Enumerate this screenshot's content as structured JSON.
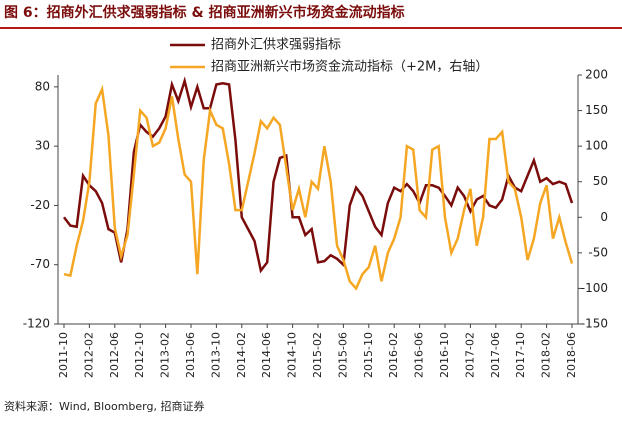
{
  "chart_data": {
    "type": "line",
    "title": "图 6：招商外汇供求强弱指标 & 招商亚洲新兴市场资金流动指标",
    "source": "资料来源：Wind, Bloomberg, 招商证券",
    "categories": [
      "2011-10",
      null,
      null,
      null,
      "2012-02",
      null,
      null,
      null,
      "2012-06",
      null,
      null,
      null,
      "2012-10",
      null,
      null,
      null,
      "2013-02",
      null,
      null,
      null,
      "2013-06",
      null,
      null,
      null,
      "2013-10",
      null,
      null,
      null,
      "2014-02",
      null,
      null,
      null,
      "2014-06",
      null,
      null,
      null,
      "2014-10",
      null,
      null,
      null,
      "2015-02",
      null,
      null,
      null,
      "2015-06",
      null,
      null,
      null,
      "2015-10",
      null,
      null,
      null,
      "2016-02",
      null,
      null,
      null,
      "2016-06",
      null,
      null,
      null,
      "2016-10",
      null,
      null,
      null,
      "2017-02",
      null,
      null,
      null,
      "2017-06",
      null,
      null,
      null,
      "2017-10",
      null,
      null,
      null,
      "2018-02",
      null,
      null,
      null,
      "2018-06"
    ],
    "series": [
      {
        "name": "招商外汇供求强弱指标",
        "color": "#7b0c0c",
        "axis": "y",
        "values": [
          -30,
          -37,
          -38,
          5,
          -3,
          -8,
          -18,
          -40,
          -43,
          -68,
          -40,
          25,
          48,
          42,
          38,
          45,
          55,
          82,
          68,
          85,
          63,
          80,
          62,
          62,
          82,
          83,
          82,
          35,
          -30,
          -40,
          -50,
          -75,
          -68,
          0,
          20,
          22,
          -30,
          -30,
          -45,
          -40,
          -68,
          -67,
          -62,
          -65,
          -70,
          -20,
          -5,
          -12,
          -25,
          -38,
          -45,
          -18,
          -5,
          -8,
          -2,
          -8,
          -18,
          -3,
          -3,
          -5,
          -12,
          -20,
          -5,
          -12,
          -25,
          -15,
          -12,
          -20,
          -22,
          -15,
          5,
          -5,
          -8,
          5,
          18,
          0,
          3,
          -2,
          0,
          -2,
          -18
        ]
      },
      {
        "name": "招商亚洲新兴市场资金流动指标（+2M，右轴）",
        "color": "#f5a623",
        "axis": "y2",
        "values": [
          -80,
          -82,
          -40,
          -5,
          50,
          160,
          180,
          115,
          -15,
          -55,
          -25,
          60,
          150,
          140,
          100,
          105,
          125,
          170,
          110,
          60,
          50,
          -80,
          80,
          150,
          130,
          125,
          75,
          10,
          10,
          50,
          90,
          135,
          125,
          140,
          130,
          70,
          10,
          40,
          0,
          50,
          40,
          100,
          50,
          -40,
          -60,
          -90,
          -100,
          -80,
          -70,
          -40,
          -90,
          -50,
          -30,
          0,
          100,
          95,
          10,
          0,
          95,
          100,
          0,
          -50,
          -30,
          10,
          40,
          -40,
          0,
          110,
          110,
          120,
          50,
          40,
          0,
          -60,
          -30,
          20,
          45,
          -30,
          0,
          -35,
          -65
        ]
      }
    ],
    "ylim": [
      -120,
      90
    ],
    "yticks": [
      -120,
      -70,
      -20,
      30,
      80
    ],
    "y2lim": [
      -150,
      200
    ],
    "y2ticks": [
      -150,
      -100,
      -50,
      0,
      50,
      100,
      150,
      200
    ]
  }
}
